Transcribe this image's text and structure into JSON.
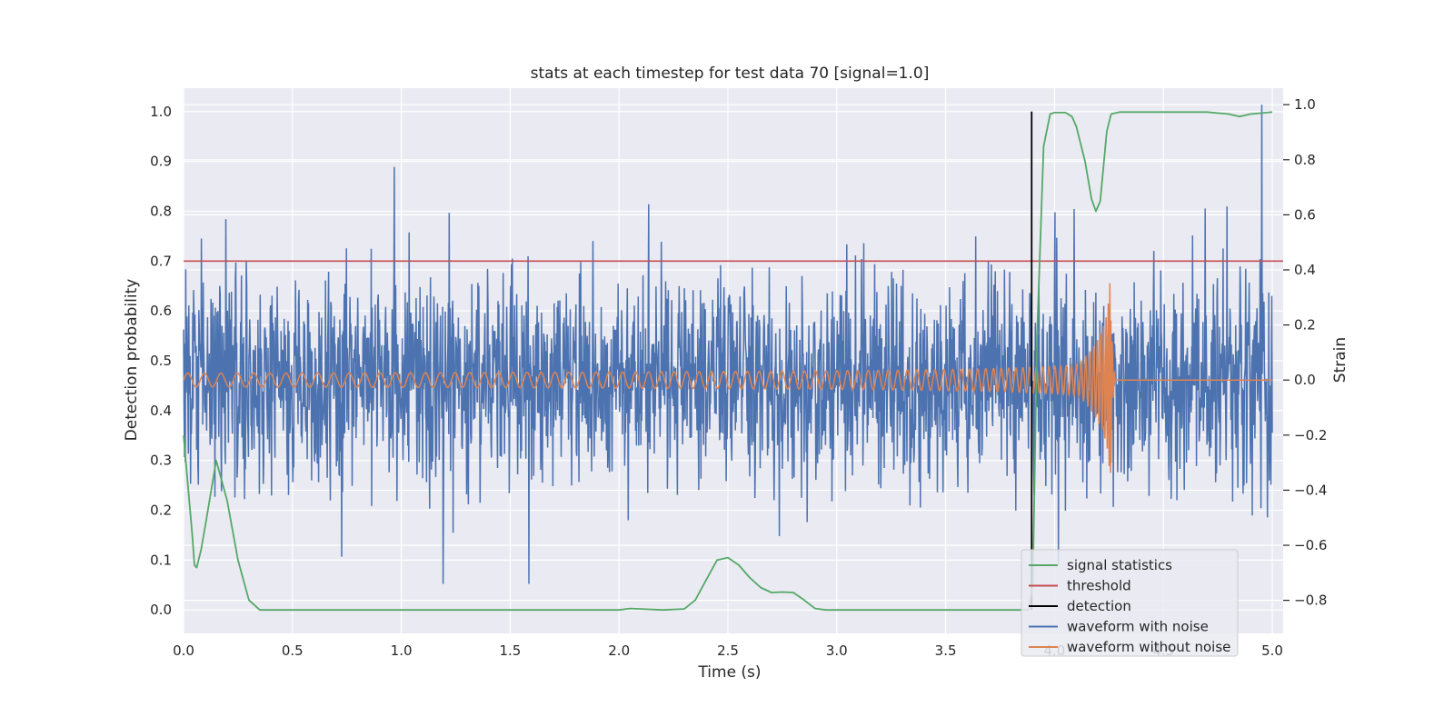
{
  "chart_data": {
    "type": "line",
    "title": "stats at each timestep for test data 70 [signal=1.0]",
    "xlabel": "Time (s)",
    "ylabel_left": "Detection probability",
    "ylabel_right": "Strain",
    "xlim": [
      0.0,
      5.05
    ],
    "ylim_left": [
      -0.047,
      1.047
    ],
    "ylim_right": [
      -0.92,
      1.06
    ],
    "x_ticks": [
      "0.0",
      "0.5",
      "1.0",
      "1.5",
      "2.0",
      "2.5",
      "3.0",
      "3.5",
      "4.0",
      "4.5",
      "5.0"
    ],
    "x_tick_values": [
      0.0,
      0.5,
      1.0,
      1.5,
      2.0,
      2.5,
      3.0,
      3.5,
      4.0,
      4.5,
      5.0
    ],
    "left_ticks": [
      "0.0",
      "0.1",
      "0.2",
      "0.3",
      "0.4",
      "0.5",
      "0.6",
      "0.7",
      "0.8",
      "0.9",
      "1.0"
    ],
    "left_tick_values": [
      0.0,
      0.1,
      0.2,
      0.3,
      0.4,
      0.5,
      0.6,
      0.7,
      0.8,
      0.9,
      1.0
    ],
    "right_ticks": [
      "−0.8",
      "−0.6",
      "−0.4",
      "−0.2",
      "0.0",
      "0.2",
      "0.4",
      "0.6",
      "0.8",
      "1.0"
    ],
    "right_tick_values": [
      -0.8,
      -0.6,
      -0.4,
      -0.2,
      0.0,
      0.2,
      0.4,
      0.6,
      0.8,
      1.0
    ],
    "grid": true,
    "legend_position": "lower-right",
    "legend": [
      "signal statistics",
      "threshold",
      "detection",
      "waveform with noise",
      "waveform without noise"
    ],
    "series": [
      {
        "name": "signal statistics",
        "axis": "left",
        "color": "#55a868",
        "x": [
          0.0,
          0.02,
          0.04,
          0.05,
          0.06,
          0.08,
          0.1,
          0.15,
          0.2,
          0.25,
          0.3,
          0.35,
          0.4,
          1.0,
          1.5,
          2.0,
          2.05,
          2.1,
          2.2,
          2.3,
          2.35,
          2.4,
          2.45,
          2.5,
          2.55,
          2.6,
          2.65,
          2.7,
          2.75,
          2.8,
          2.85,
          2.9,
          2.95,
          3.0,
          3.5,
          3.85,
          3.88,
          3.9,
          3.92,
          3.95,
          3.98,
          4.0,
          4.05,
          4.08,
          4.1,
          4.14,
          4.17,
          4.19,
          4.21,
          4.24,
          4.26,
          4.3,
          4.5,
          4.7,
          4.8,
          4.85,
          4.9,
          5.0
        ],
        "y": [
          0.35,
          0.25,
          0.15,
          0.09,
          0.085,
          0.12,
          0.17,
          0.3,
          0.22,
          0.1,
          0.02,
          0.0,
          0.0,
          0.0,
          0.0,
          0.0,
          0.003,
          0.002,
          0.0,
          0.002,
          0.02,
          0.06,
          0.1,
          0.105,
          0.09,
          0.065,
          0.045,
          0.035,
          0.036,
          0.035,
          0.02,
          0.003,
          0.0,
          0.0,
          0.0,
          0.0,
          0.0,
          0.05,
          0.55,
          0.93,
          0.995,
          0.998,
          0.998,
          0.99,
          0.97,
          0.9,
          0.825,
          0.8,
          0.82,
          0.96,
          0.995,
          0.999,
          0.999,
          0.999,
          0.995,
          0.99,
          0.995,
          0.999
        ]
      },
      {
        "name": "threshold",
        "axis": "left",
        "color": "#c44e52",
        "x": [
          0.0,
          5.05
        ],
        "y": [
          0.7,
          0.7
        ]
      },
      {
        "name": "detection",
        "axis": "left",
        "color": "#000000",
        "x": [
          3.895,
          3.895
        ],
        "y": [
          0.0,
          1.0
        ]
      },
      {
        "name": "waveform with noise",
        "axis": "right",
        "color": "#4c72b0",
        "description_values": "noisy strain ~N(0,0.18), range about -0.7 to 1.0, samples every 0.002 s",
        "x_range": [
          0.0,
          5.0
        ],
        "y_std": 0.18,
        "y_min": -0.74,
        "y_max": 1.0
      },
      {
        "name": "waveform without noise",
        "axis": "right",
        "color": "#dd8452",
        "x_range": [
          0.0,
          5.0
        ],
        "merger_time": 4.26,
        "amplitude_start": 0.025,
        "peak_amplitude": 0.36,
        "post_merger_value": 0.0
      }
    ]
  }
}
